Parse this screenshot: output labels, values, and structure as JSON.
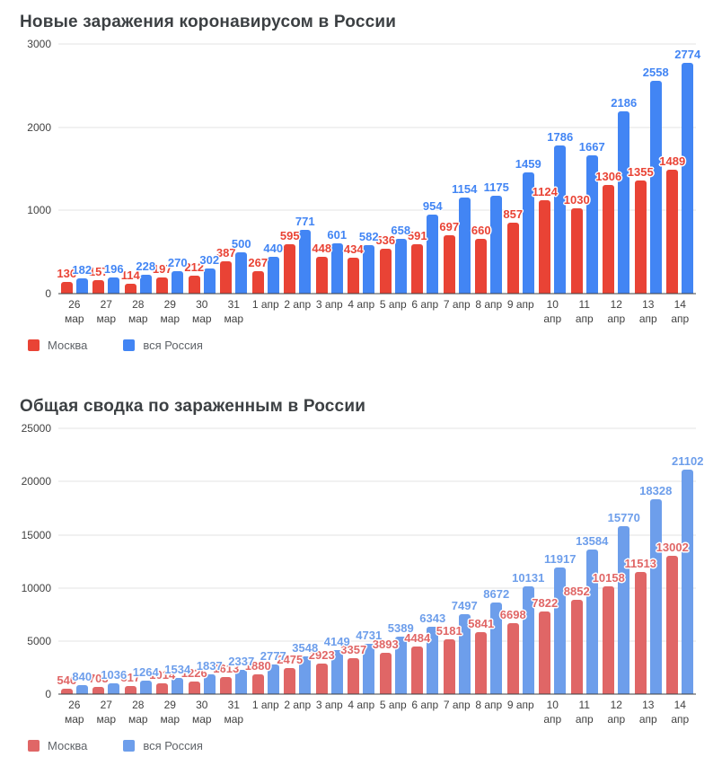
{
  "chart_data": [
    {
      "type": "bar",
      "title": "Новые заражения коронавирусом в России",
      "categories": [
        "26 мар",
        "27 мар",
        "28 мар",
        "29 мар",
        "30 мар",
        "31 мар",
        "1 апр",
        "2 апр",
        "3 апр",
        "4 апр",
        "5 апр",
        "6 апр",
        "7 апр",
        "8 апр",
        "9 апр",
        "10 апр",
        "11 апр",
        "12 апр",
        "13 апр",
        "14 апр"
      ],
      "series": [
        {
          "name": "Москва",
          "color": "#e94335",
          "values": [
            136,
            157,
            114,
            197,
            212,
            387,
            267,
            595,
            448,
            434,
            536,
            591,
            697,
            660,
            857,
            1124,
            1030,
            1306,
            1355,
            1489
          ]
        },
        {
          "name": "вся Россия",
          "color": "#4285f4",
          "values": [
            182,
            196,
            228,
            270,
            302,
            500,
            440,
            771,
            601,
            582,
            658,
            954,
            1154,
            1175,
            1459,
            1786,
            1667,
            2186,
            2558,
            2774
          ]
        }
      ],
      "y_ticks": [
        0,
        1000,
        2000,
        3000
      ],
      "ylim": [
        0,
        3000
      ],
      "grid": true,
      "legend_position": "bottom-left",
      "data_labels": true
    },
    {
      "type": "bar",
      "title": "Общая сводка по зараженным в России",
      "categories": [
        "26 мар",
        "27 мар",
        "28 мар",
        "29 мар",
        "30 мар",
        "31 мар",
        "1 апр",
        "2 апр",
        "3 апр",
        "4 апр",
        "5 апр",
        "6 апр",
        "7 апр",
        "8 апр",
        "9 апр",
        "10 апр",
        "11 апр",
        "12 апр",
        "13 апр",
        "14 апр"
      ],
      "series": [
        {
          "name": "Москва",
          "color": "#e06666",
          "values": [
            546,
            703,
            817,
            1014,
            1226,
            1613,
            1880,
            2475,
            2923,
            3357,
            3893,
            4484,
            5181,
            5841,
            6698,
            7822,
            8852,
            10158,
            11513,
            13002
          ]
        },
        {
          "name": "вся Россия",
          "color": "#6d9eeb",
          "values": [
            840,
            1036,
            1264,
            1534,
            1837,
            2337,
            2777,
            3548,
            4149,
            4731,
            5389,
            6343,
            7497,
            8672,
            10131,
            11917,
            13584,
            15770,
            18328,
            21102
          ]
        }
      ],
      "y_ticks": [
        0,
        5000,
        10000,
        15000,
        20000,
        25000
      ],
      "ylim": [
        0,
        25000
      ],
      "grid": true,
      "legend_position": "bottom-left",
      "data_labels": true
    }
  ]
}
